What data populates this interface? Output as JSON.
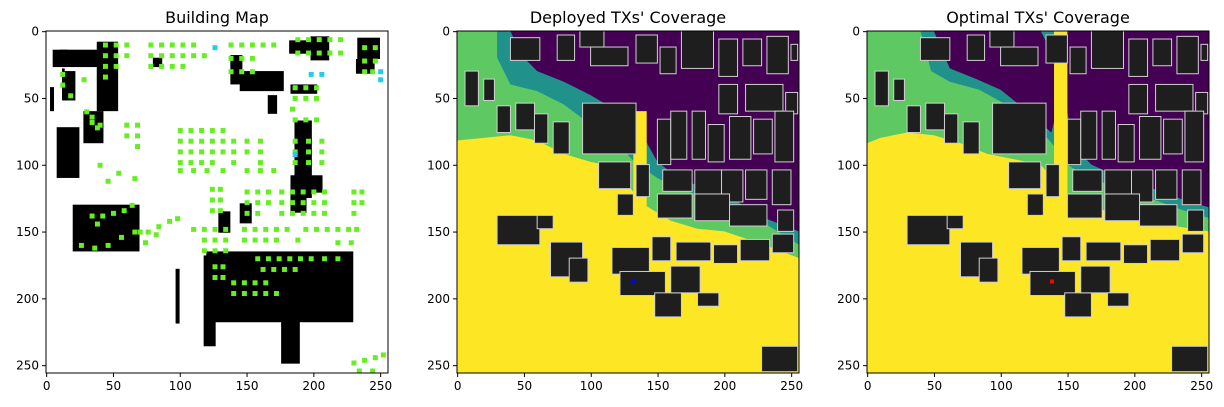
{
  "chart_data": [
    {
      "type": "heatmap",
      "title": "Building Map",
      "xlim": [
        0,
        255
      ],
      "ylim": [
        255,
        0
      ],
      "x_ticks": [
        0,
        50,
        100,
        150,
        200,
        250
      ],
      "y_ticks": [
        0,
        50,
        100,
        150,
        200,
        250
      ],
      "grid": false,
      "legend": "none",
      "colors": {
        "background": "#ffffff",
        "building": "#000000",
        "candidate_tx": "#66ee22",
        "deployed_tx": "#22ccee"
      },
      "buildings": [
        [
          38,
          8,
          54,
          60
        ],
        [
          8,
          72,
          25,
          38
        ],
        [
          28,
          60,
          15,
          24
        ],
        [
          12,
          28,
          14,
          50
        ],
        [
          3,
          42,
          6,
          60
        ],
        [
          12,
          30,
          10,
          22
        ],
        [
          182,
          7,
          207,
          17
        ],
        [
          183,
          40,
          203,
          47
        ],
        [
          186,
          67,
          199,
          58
        ],
        [
          138,
          18,
          147,
          40
        ],
        [
          145,
          30,
          33,
          45
        ],
        [
          233,
          5,
          250,
          21
        ],
        [
          200,
          10,
          203,
          14
        ],
        [
          232,
          21,
          246,
          32
        ],
        [
          198,
          4,
          212,
          22
        ],
        [
          166,
          48,
          173,
          14
        ],
        [
          183,
          120,
          195,
          16
        ],
        [
          176,
          183,
          190,
          66
        ],
        [
          183,
          108,
          207,
          13
        ],
        [
          118,
          168,
          127,
          68
        ],
        [
          97,
          178,
          100,
          41
        ],
        [
          80,
          20,
          87,
          27
        ],
        [
          120,
          165,
          110,
          53
        ],
        [
          20,
          130,
          70,
          35
        ],
        [
          10,
          14,
          6,
          9
        ],
        [
          5,
          14,
          41,
          13
        ],
        [
          145,
          129,
          154,
          15
        ],
        [
          129,
          135,
          138,
          16
        ]
      ],
      "candidate_tx": [
        [
          44,
          10
        ],
        [
          52,
          10
        ],
        [
          60,
          10
        ],
        [
          44,
          18
        ],
        [
          52,
          18
        ],
        [
          60,
          18
        ],
        [
          44,
          26
        ],
        [
          52,
          26
        ],
        [
          44,
          34
        ],
        [
          78,
          10
        ],
        [
          86,
          10
        ],
        [
          94,
          10
        ],
        [
          102,
          10
        ],
        [
          110,
          10
        ],
        [
          78,
          18
        ],
        [
          86,
          18
        ],
        [
          94,
          18
        ],
        [
          102,
          18
        ],
        [
          110,
          18
        ],
        [
          118,
          18
        ],
        [
          78,
          26
        ],
        [
          86,
          26
        ],
        [
          94,
          26
        ],
        [
          102,
          26
        ],
        [
          138,
          10
        ],
        [
          146,
          10
        ],
        [
          154,
          10
        ],
        [
          162,
          10
        ],
        [
          170,
          10
        ],
        [
          138,
          20
        ],
        [
          146,
          20
        ],
        [
          154,
          20
        ],
        [
          138,
          30
        ],
        [
          146,
          30
        ],
        [
          154,
          30
        ],
        [
          188,
          6
        ],
        [
          196,
          6
        ],
        [
          204,
          6
        ],
        [
          212,
          6
        ],
        [
          220,
          6
        ],
        [
          188,
          16
        ],
        [
          196,
          16
        ],
        [
          204,
          16
        ],
        [
          212,
          16
        ],
        [
          220,
          16
        ],
        [
          186,
          42
        ],
        [
          194,
          42
        ],
        [
          202,
          42
        ],
        [
          186,
          50
        ],
        [
          194,
          50
        ],
        [
          202,
          50
        ],
        [
          184,
          58
        ],
        [
          186,
          66
        ],
        [
          194,
          66
        ],
        [
          202,
          66
        ],
        [
          238,
          12
        ],
        [
          246,
          12
        ],
        [
          238,
          22
        ],
        [
          246,
          22
        ],
        [
          238,
          30
        ],
        [
          244,
          30
        ],
        [
          12,
          32
        ],
        [
          12,
          40
        ],
        [
          18,
          48
        ],
        [
          30,
          60
        ],
        [
          34,
          68
        ],
        [
          40,
          70
        ],
        [
          28,
          36
        ],
        [
          60,
          70
        ],
        [
          68,
          70
        ],
        [
          60,
          78
        ],
        [
          68,
          78
        ],
        [
          68,
          86
        ],
        [
          100,
          74
        ],
        [
          108,
          74
        ],
        [
          116,
          74
        ],
        [
          124,
          74
        ],
        [
          132,
          74
        ],
        [
          100,
          82
        ],
        [
          108,
          82
        ],
        [
          116,
          82
        ],
        [
          124,
          82
        ],
        [
          132,
          82
        ],
        [
          100,
          90
        ],
        [
          108,
          90
        ],
        [
          116,
          90
        ],
        [
          124,
          90
        ],
        [
          132,
          90
        ],
        [
          100,
          98
        ],
        [
          108,
          98
        ],
        [
          116,
          98
        ],
        [
          124,
          98
        ],
        [
          100,
          104
        ],
        [
          110,
          104
        ],
        [
          120,
          104
        ],
        [
          132,
          104
        ],
        [
          150,
          104
        ],
        [
          160,
          104
        ],
        [
          170,
          104
        ],
        [
          140,
          82
        ],
        [
          150,
          82
        ],
        [
          160,
          82
        ],
        [
          140,
          90
        ],
        [
          150,
          90
        ],
        [
          160,
          90
        ],
        [
          140,
          98
        ],
        [
          160,
          98
        ],
        [
          186,
          82
        ],
        [
          196,
          82
        ],
        [
          206,
          82
        ],
        [
          186,
          90
        ],
        [
          196,
          90
        ],
        [
          206,
          90
        ],
        [
          186,
          98
        ],
        [
          196,
          98
        ],
        [
          206,
          98
        ],
        [
          124,
          118
        ],
        [
          130,
          118
        ],
        [
          124,
          126
        ],
        [
          130,
          126
        ],
        [
          124,
          134
        ],
        [
          130,
          134
        ],
        [
          150,
          120
        ],
        [
          158,
          120
        ],
        [
          166,
          120
        ],
        [
          150,
          128
        ],
        [
          158,
          128
        ],
        [
          166,
          128
        ],
        [
          150,
          136
        ],
        [
          158,
          136
        ],
        [
          176,
          120
        ],
        [
          184,
          120
        ],
        [
          192,
          120
        ],
        [
          176,
          128
        ],
        [
          184,
          128
        ],
        [
          192,
          128
        ],
        [
          176,
          136
        ],
        [
          184,
          136
        ],
        [
          192,
          136
        ],
        [
          200,
          120
        ],
        [
          208,
          120
        ],
        [
          200,
          128
        ],
        [
          208,
          128
        ],
        [
          200,
          136
        ],
        [
          208,
          136
        ],
        [
          230,
          120
        ],
        [
          236,
          120
        ],
        [
          230,
          128
        ],
        [
          236,
          128
        ],
        [
          230,
          136
        ],
        [
          34,
          138
        ],
        [
          42,
          138
        ],
        [
          50,
          136
        ],
        [
          58,
          134
        ],
        [
          64,
          130
        ],
        [
          38,
          144
        ],
        [
          70,
          150
        ],
        [
          76,
          150
        ],
        [
          84,
          146
        ],
        [
          92,
          142
        ],
        [
          98,
          140
        ],
        [
          74,
          158
        ],
        [
          82,
          152
        ],
        [
          110,
          148
        ],
        [
          118,
          148
        ],
        [
          126,
          148
        ],
        [
          134,
          148
        ],
        [
          118,
          156
        ],
        [
          126,
          156
        ],
        [
          134,
          156
        ],
        [
          118,
          164
        ],
        [
          126,
          164
        ],
        [
          134,
          164
        ],
        [
          148,
          148
        ],
        [
          156,
          148
        ],
        [
          164,
          148
        ],
        [
          172,
          148
        ],
        [
          180,
          148
        ],
        [
          148,
          156
        ],
        [
          156,
          156
        ],
        [
          164,
          156
        ],
        [
          172,
          156
        ],
        [
          188,
          156
        ],
        [
          158,
          170
        ],
        [
          166,
          170
        ],
        [
          174,
          170
        ],
        [
          182,
          170
        ],
        [
          190,
          170
        ],
        [
          198,
          170
        ],
        [
          208,
          170
        ],
        [
          218,
          170
        ],
        [
          194,
          148
        ],
        [
          202,
          148
        ],
        [
          210,
          148
        ],
        [
          218,
          148
        ],
        [
          226,
          148
        ],
        [
          232,
          148
        ],
        [
          218,
          158
        ],
        [
          228,
          158
        ],
        [
          126,
          176
        ],
        [
          132,
          176
        ],
        [
          126,
          184
        ],
        [
          132,
          184
        ],
        [
          140,
          188
        ],
        [
          148,
          188
        ],
        [
          156,
          188
        ],
        [
          164,
          188
        ],
        [
          140,
          196
        ],
        [
          148,
          196
        ],
        [
          156,
          196
        ],
        [
          164,
          196
        ],
        [
          172,
          196
        ],
        [
          162,
          178
        ],
        [
          170,
          178
        ],
        [
          178,
          178
        ],
        [
          186,
          178
        ],
        [
          34,
          64
        ],
        [
          38,
          72
        ],
        [
          54,
          106
        ],
        [
          66,
          110
        ],
        [
          40,
          100
        ],
        [
          46,
          112
        ],
        [
          26,
          160
        ],
        [
          36,
          162
        ],
        [
          46,
          160
        ],
        [
          56,
          154
        ],
        [
          66,
          150
        ],
        [
          230,
          248
        ],
        [
          238,
          246
        ],
        [
          246,
          244
        ],
        [
          252,
          242
        ],
        [
          234,
          254
        ],
        [
          244,
          254
        ]
      ],
      "deployed_tx": [
        [
          126,
          12
        ],
        [
          198,
          32
        ],
        [
          206,
          32
        ],
        [
          250,
          30
        ],
        [
          250,
          36
        ],
        [
          186,
          92
        ]
      ]
    },
    {
      "type": "heatmap",
      "title": "Deployed TXs' Coverage",
      "xlim": [
        0,
        255
      ],
      "ylim": [
        255,
        0
      ],
      "x_ticks": [
        0,
        50,
        100,
        150,
        200,
        250
      ],
      "y_ticks": [
        0,
        50,
        100,
        150,
        200,
        250
      ],
      "grid": false,
      "legend": "none",
      "colormap": [
        "#440154",
        "#21918c",
        "#5ec962",
        "#fde725"
      ],
      "tx_marker_color": "#0000ff",
      "tx_position": [
        132,
        187
      ]
    },
    {
      "type": "heatmap",
      "title": "Optimal TXs' Coverage",
      "xlim": [
        0,
        255
      ],
      "ylim": [
        255,
        0
      ],
      "x_ticks": [
        0,
        50,
        100,
        150,
        200,
        250
      ],
      "y_ticks": [
        0,
        50,
        100,
        150,
        200,
        250
      ],
      "grid": false,
      "legend": "none",
      "colormap": [
        "#440154",
        "#21918c",
        "#5ec962",
        "#fde725"
      ],
      "tx_marker_color": "#ff0000",
      "tx_position": [
        138,
        187
      ]
    }
  ]
}
